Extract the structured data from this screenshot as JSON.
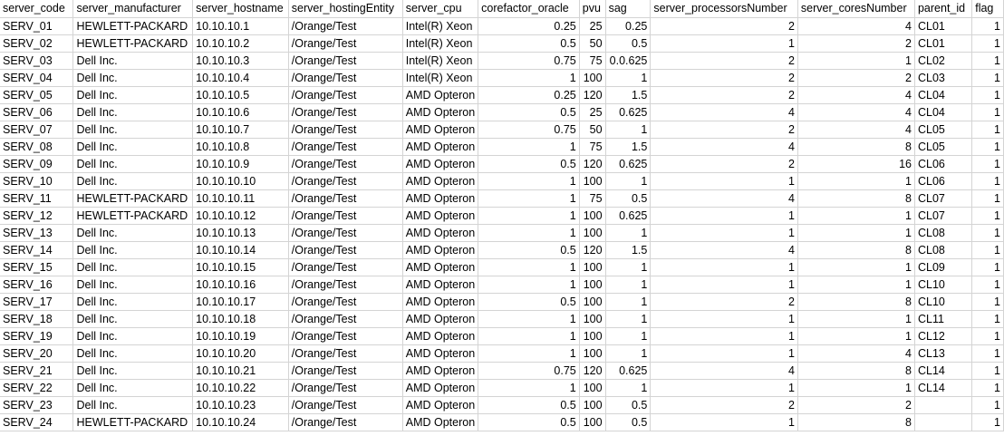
{
  "sheet": {
    "columns": [
      {
        "name": "server_code",
        "align": "left"
      },
      {
        "name": "server_manufacturer",
        "align": "left"
      },
      {
        "name": "server_hostname",
        "align": "left"
      },
      {
        "name": "server_hostingEntity",
        "align": "left"
      },
      {
        "name": "server_cpu",
        "align": "left"
      },
      {
        "name": "corefactor_oracle",
        "align": "right"
      },
      {
        "name": "pvu",
        "align": "right"
      },
      {
        "name": "sag",
        "align": "right"
      },
      {
        "name": "server_processorsNumber",
        "align": "right"
      },
      {
        "name": "server_coresNumber",
        "align": "right"
      },
      {
        "name": "parent_id",
        "align": "left"
      },
      {
        "name": "flag",
        "align": "right"
      }
    ],
    "rows": [
      [
        "SERV_01",
        "HEWLETT-PACKARD",
        "10.10.10.1",
        "/Orange/Test",
        "Intel(R) Xeon",
        "0.25",
        "25",
        "0.25",
        "2",
        "4",
        "CL01",
        "1"
      ],
      [
        "SERV_02",
        "HEWLETT-PACKARD",
        "10.10.10.2",
        "/Orange/Test",
        "Intel(R) Xeon",
        "0.5",
        "50",
        "0.5",
        "1",
        "2",
        "CL01",
        "1"
      ],
      [
        "SERV_03",
        "Dell Inc.",
        "10.10.10.3",
        "/Orange/Test",
        "Intel(R) Xeon",
        "0.75",
        "75",
        "0.0.625",
        "2",
        "1",
        "CL02",
        "1"
      ],
      [
        "SERV_04",
        "Dell Inc.",
        "10.10.10.4",
        "/Orange/Test",
        "Intel(R) Xeon",
        "1",
        "100",
        "1",
        "2",
        "2",
        "CL03",
        "1"
      ],
      [
        "SERV_05",
        "Dell Inc.",
        "10.10.10.5",
        "/Orange/Test",
        "AMD Opteron",
        "0.25",
        "120",
        "1.5",
        "2",
        "4",
        "CL04",
        "1"
      ],
      [
        "SERV_06",
        "Dell Inc.",
        "10.10.10.6",
        "/Orange/Test",
        "AMD Opteron",
        "0.5",
        "25",
        "0.625",
        "4",
        "4",
        "CL04",
        "1"
      ],
      [
        "SERV_07",
        "Dell Inc.",
        "10.10.10.7",
        "/Orange/Test",
        "AMD Opteron",
        "0.75",
        "50",
        "1",
        "2",
        "4",
        "CL05",
        "1"
      ],
      [
        "SERV_08",
        "Dell Inc.",
        "10.10.10.8",
        "/Orange/Test",
        "AMD Opteron",
        "1",
        "75",
        "1.5",
        "4",
        "8",
        "CL05",
        "1"
      ],
      [
        "SERV_09",
        "Dell Inc.",
        "10.10.10.9",
        "/Orange/Test",
        "AMD Opteron",
        "0.5",
        "120",
        "0.625",
        "2",
        "16",
        "CL06",
        "1"
      ],
      [
        "SERV_10",
        "Dell Inc.",
        "10.10.10.10",
        "/Orange/Test",
        "AMD Opteron",
        "1",
        "100",
        "1",
        "1",
        "1",
        "CL06",
        "1"
      ],
      [
        "SERV_11",
        "HEWLETT-PACKARD",
        "10.10.10.11",
        "/Orange/Test",
        "AMD Opteron",
        "1",
        "75",
        "0.5",
        "4",
        "8",
        "CL07",
        "1"
      ],
      [
        "SERV_12",
        "HEWLETT-PACKARD",
        "10.10.10.12",
        "/Orange/Test",
        "AMD Opteron",
        "1",
        "100",
        "0.625",
        "1",
        "1",
        "CL07",
        "1"
      ],
      [
        "SERV_13",
        "Dell Inc.",
        "10.10.10.13",
        "/Orange/Test",
        "AMD Opteron",
        "1",
        "100",
        "1",
        "1",
        "1",
        "CL08",
        "1"
      ],
      [
        "SERV_14",
        "Dell Inc.",
        "10.10.10.14",
        "/Orange/Test",
        "AMD Opteron",
        "0.5",
        "120",
        "1.5",
        "4",
        "8",
        "CL08",
        "1"
      ],
      [
        "SERV_15",
        "Dell Inc.",
        "10.10.10.15",
        "/Orange/Test",
        "AMD Opteron",
        "1",
        "100",
        "1",
        "1",
        "1",
        "CL09",
        "1"
      ],
      [
        "SERV_16",
        "Dell Inc.",
        "10.10.10.16",
        "/Orange/Test",
        "AMD Opteron",
        "1",
        "100",
        "1",
        "1",
        "1",
        "CL10",
        "1"
      ],
      [
        "SERV_17",
        "Dell Inc.",
        "10.10.10.17",
        "/Orange/Test",
        "AMD Opteron",
        "0.5",
        "100",
        "1",
        "2",
        "8",
        "CL10",
        "1"
      ],
      [
        "SERV_18",
        "Dell Inc.",
        "10.10.10.18",
        "/Orange/Test",
        "AMD Opteron",
        "1",
        "100",
        "1",
        "1",
        "1",
        "CL11",
        "1"
      ],
      [
        "SERV_19",
        "Dell Inc.",
        "10.10.10.19",
        "/Orange/Test",
        "AMD Opteron",
        "1",
        "100",
        "1",
        "1",
        "1",
        "CL12",
        "1"
      ],
      [
        "SERV_20",
        "Dell Inc.",
        "10.10.10.20",
        "/Orange/Test",
        "AMD Opteron",
        "1",
        "100",
        "1",
        "1",
        "4",
        "CL13",
        "1"
      ],
      [
        "SERV_21",
        "Dell Inc.",
        "10.10.10.21",
        "/Orange/Test",
        "AMD Opteron",
        "0.75",
        "120",
        "0.625",
        "4",
        "8",
        "CL14",
        "1"
      ],
      [
        "SERV_22",
        "Dell Inc.",
        "10.10.10.22",
        "/Orange/Test",
        "AMD Opteron",
        "1",
        "100",
        "1",
        "1",
        "1",
        "CL14",
        "1"
      ],
      [
        "SERV_23",
        "Dell Inc.",
        "10.10.10.23",
        "/Orange/Test",
        "AMD Opteron",
        "0.5",
        "100",
        "0.5",
        "2",
        "2",
        "",
        "1"
      ],
      [
        "SERV_24",
        "HEWLETT-PACKARD",
        "10.10.10.24",
        "/Orange/Test",
        "AMD Opteron",
        "0.5",
        "100",
        "0.5",
        "1",
        "8",
        "",
        "1"
      ]
    ]
  }
}
